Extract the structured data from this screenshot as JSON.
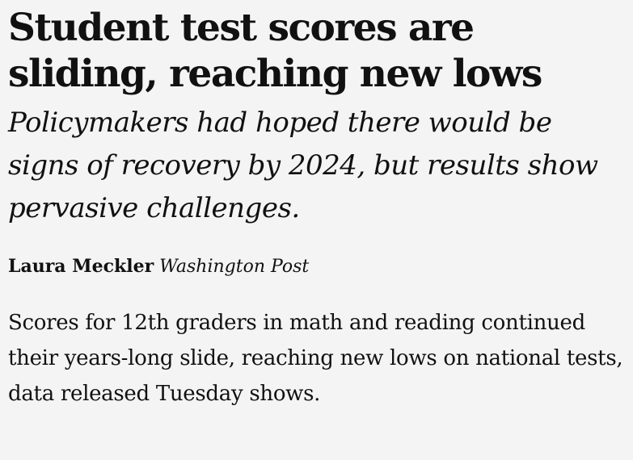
{
  "article": {
    "headline": "Student test scores are sliding, reaching new lows",
    "subheadline": "Policymakers had hoped there would be signs of recovery by 2024, but results show pervasive challenges.",
    "author": "Laura Meckler",
    "publication": "Washington Post",
    "body": "Scores for 12th graders in math and reading continued their years-long slide, reaching new lows on national tests, data released Tuesday shows."
  }
}
